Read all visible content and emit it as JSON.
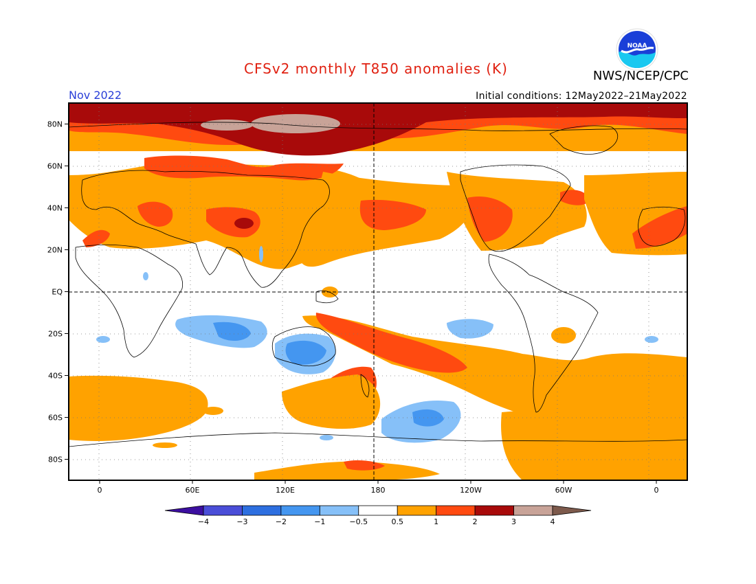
{
  "header": {
    "title": "CFSv2 monthly T850 anomalies (K)",
    "agency": "NWS/NCEP/CPC",
    "month": "Nov 2022",
    "initial_conditions": "Initial conditions: 12May2022–21May2022",
    "logo_icon": "noaa-logo-icon",
    "logo_text": "NOAA"
  },
  "map": {
    "lat_labels": [
      "80N",
      "60N",
      "40N",
      "20N",
      "EQ",
      "20S",
      "40S",
      "60S",
      "80S"
    ],
    "lon_labels": [
      "0",
      "60E",
      "120E",
      "180",
      "120W",
      "60W",
      "0"
    ],
    "lat_values": [
      80,
      60,
      40,
      20,
      0,
      -20,
      -40,
      -60,
      -80
    ],
    "lon_values": [
      0,
      60,
      120,
      180,
      240,
      300,
      360
    ]
  },
  "colorbar": {
    "levels": [
      "−4",
      "−3",
      "−2",
      "−1",
      "−0.5",
      "0.5",
      "1",
      "2",
      "3",
      "4"
    ],
    "colors": [
      "#3c0fa0",
      "#4a4ed8",
      "#2d6fe0",
      "#4496f0",
      "#86c0f8",
      "#ffffff",
      "#ffa200",
      "#ff4a10",
      "#a80a0a",
      "#c8a398",
      "#7d5a4c"
    ]
  }
}
